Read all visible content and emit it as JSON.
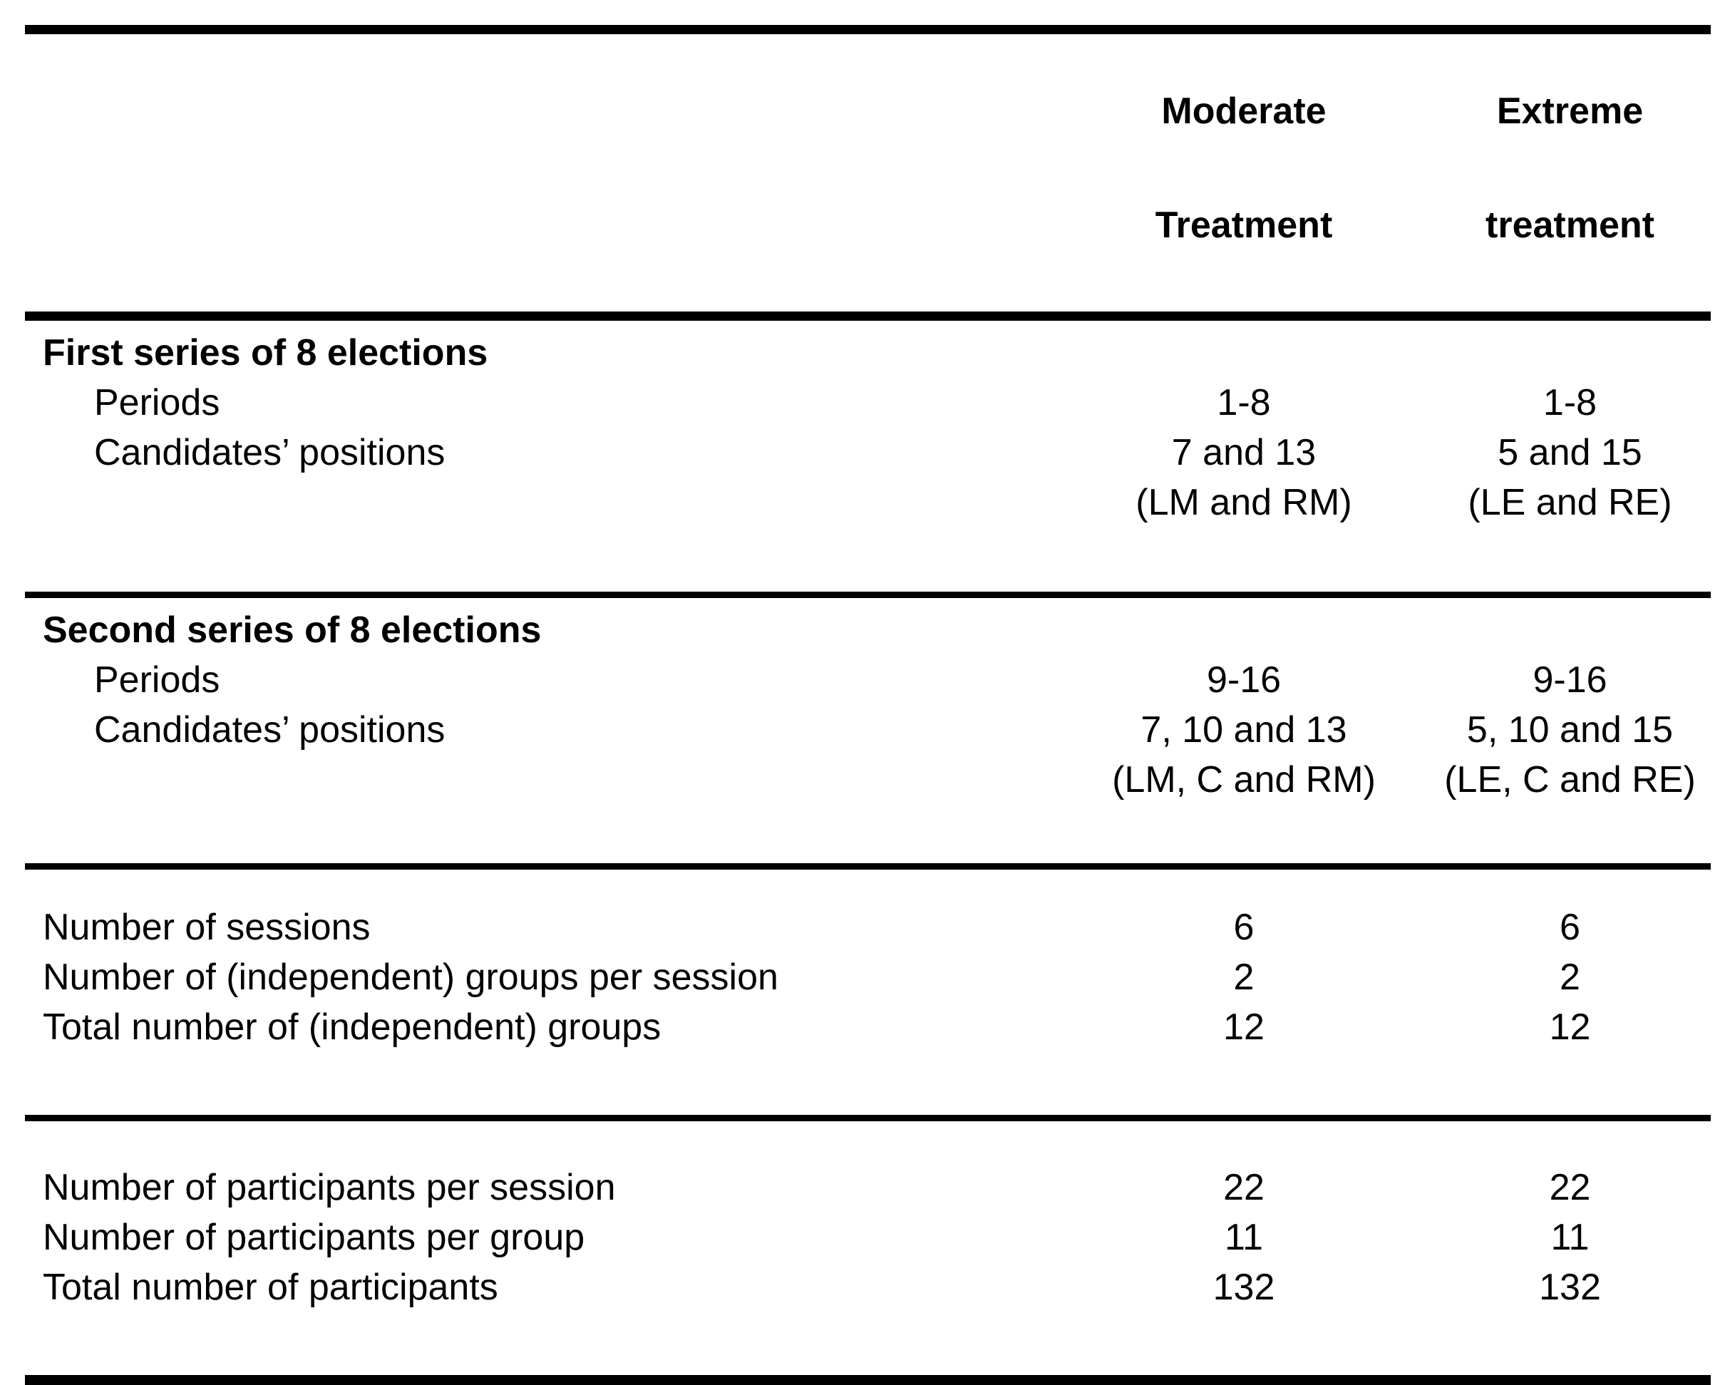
{
  "page": {
    "background": "#ffffff",
    "text_color": "#000000",
    "rule_color": "#000000"
  },
  "table": {
    "columns": [
      {
        "line1": "Moderate",
        "line2": "Treatment"
      },
      {
        "line1": "Extreme",
        "line2": "treatment"
      }
    ],
    "sections": [
      {
        "title": "First series of 8 elections",
        "rows": [
          {
            "label": "Periods",
            "moderate": "1-8",
            "extreme": "1-8"
          },
          {
            "label": "Candidates’ positions",
            "moderate": "7 and 13",
            "extreme": "5 and 15"
          },
          {
            "label": "",
            "moderate": "(LM and RM)",
            "extreme": "(LE and RE)"
          }
        ]
      },
      {
        "title": "Second series of 8 elections",
        "rows": [
          {
            "label": "Periods",
            "moderate": "9-16",
            "extreme": "9-16"
          },
          {
            "label": "Candidates’ positions",
            "moderate": "7, 10 and 13",
            "extreme": "5, 10 and 15"
          },
          {
            "label": "",
            "moderate": "(LM, C and RM)",
            "extreme": "(LE, C and RE)"
          }
        ]
      },
      {
        "title": "",
        "rows": [
          {
            "label": "Number of sessions",
            "moderate": "6",
            "extreme": "6"
          },
          {
            "label": "Number of (independent) groups per session",
            "moderate": "2",
            "extreme": "2"
          },
          {
            "label": "Total number of (independent) groups",
            "moderate": "12",
            "extreme": "12"
          }
        ]
      },
      {
        "title": "",
        "rows": [
          {
            "label": "Number of participants per session",
            "moderate": "22",
            "extreme": "22"
          },
          {
            "label": "Number of participants per group",
            "moderate": "11",
            "extreme": "11"
          },
          {
            "label": "Total number of participants",
            "moderate": "132",
            "extreme": "132"
          }
        ]
      }
    ]
  }
}
